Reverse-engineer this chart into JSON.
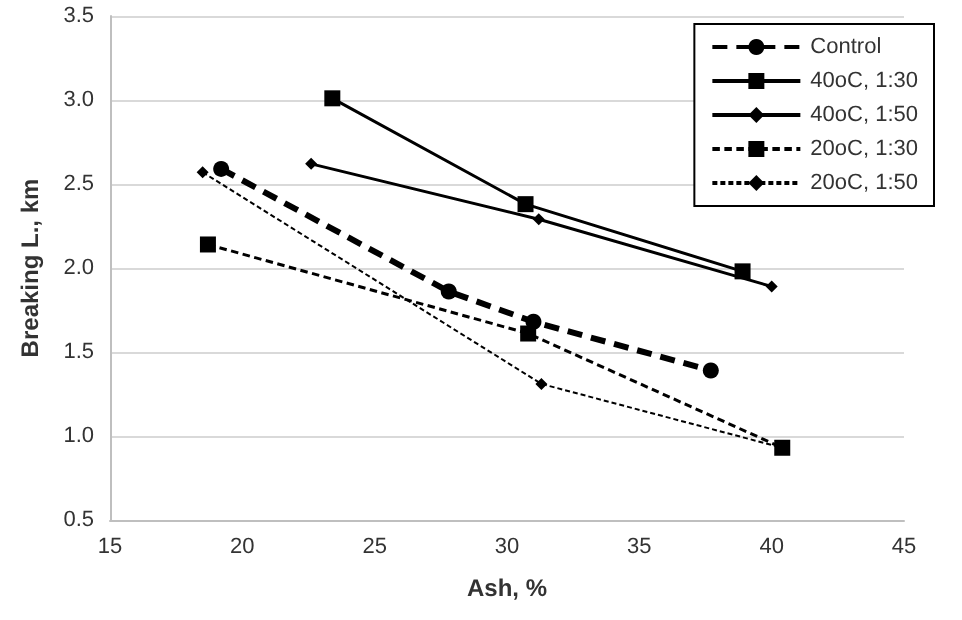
{
  "chart_data": {
    "type": "line",
    "xlabel": "Ash, %",
    "ylabel": "Breaking L., km",
    "xlim": [
      15,
      45
    ],
    "xticks": [
      15,
      20,
      25,
      30,
      35,
      40,
      45
    ],
    "ylim": [
      0.5,
      3.5
    ],
    "yticks": [
      {
        "value": 0.5,
        "label": "0.5"
      },
      {
        "value": 1,
        "label": "1.0"
      },
      {
        "value": 1.5,
        "label": "1.5"
      },
      {
        "value": 2,
        "label": "2.0"
      },
      {
        "value": 2.5,
        "label": "2.5"
      },
      {
        "value": 3,
        "label": "3.0"
      },
      {
        "value": 3.5,
        "label": "3.5"
      }
    ],
    "grid": "y",
    "legend": "top right",
    "series": [
      {
        "name": "Control",
        "color": "#000000",
        "marker": "circle",
        "line_style": "dashed",
        "x": [
          19.2,
          27.8,
          31.0,
          37.7
        ],
        "values": [
          2.59,
          1.86,
          1.68,
          1.39
        ]
      },
      {
        "name": "40oC, 1:30",
        "color": "#000000",
        "marker": "square",
        "line_style": "solid",
        "x": [
          23.4,
          30.7,
          38.9
        ],
        "values": [
          3.01,
          2.38,
          1.98
        ]
      },
      {
        "name": "40oC, 1:50",
        "color": "#000000",
        "marker": "diamond",
        "line_style": "solid",
        "x": [
          22.6,
          31.2,
          40.0
        ],
        "values": [
          2.62,
          2.29,
          1.89
        ]
      },
      {
        "name": "20oC, 1:30",
        "color": "#000000",
        "marker": "square",
        "line_style": "dashed",
        "x": [
          18.7,
          30.8,
          40.4
        ],
        "values": [
          2.14,
          1.61,
          0.93
        ]
      },
      {
        "name": "20oC, 1:50",
        "color": "#000000",
        "marker": "diamond",
        "line_style": "dashed",
        "x": [
          18.5,
          31.3,
          40.4
        ],
        "values": [
          2.57,
          1.31,
          0.93
        ]
      }
    ]
  }
}
